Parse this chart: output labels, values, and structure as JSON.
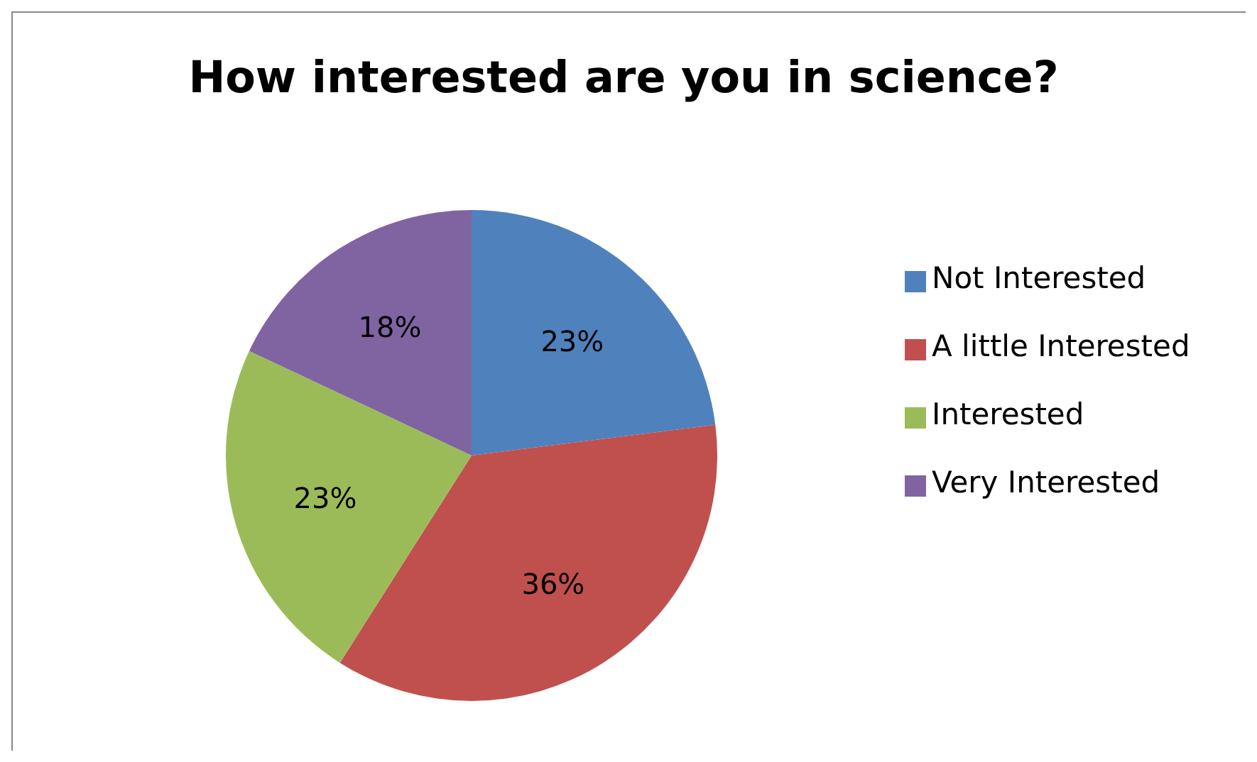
{
  "chart_data": {
    "type": "pie",
    "title": "How interested are you in science?",
    "categories": [
      "Not Interested",
      "A little Interested",
      "Interested",
      "Very Interested"
    ],
    "values": [
      23,
      36,
      23,
      18
    ],
    "colors": [
      "#4f81bd",
      "#c0504d",
      "#9bbb59",
      "#8064a2"
    ],
    "value_labels": [
      "23%",
      "36%",
      "23%",
      "18%"
    ],
    "legend": "right"
  }
}
